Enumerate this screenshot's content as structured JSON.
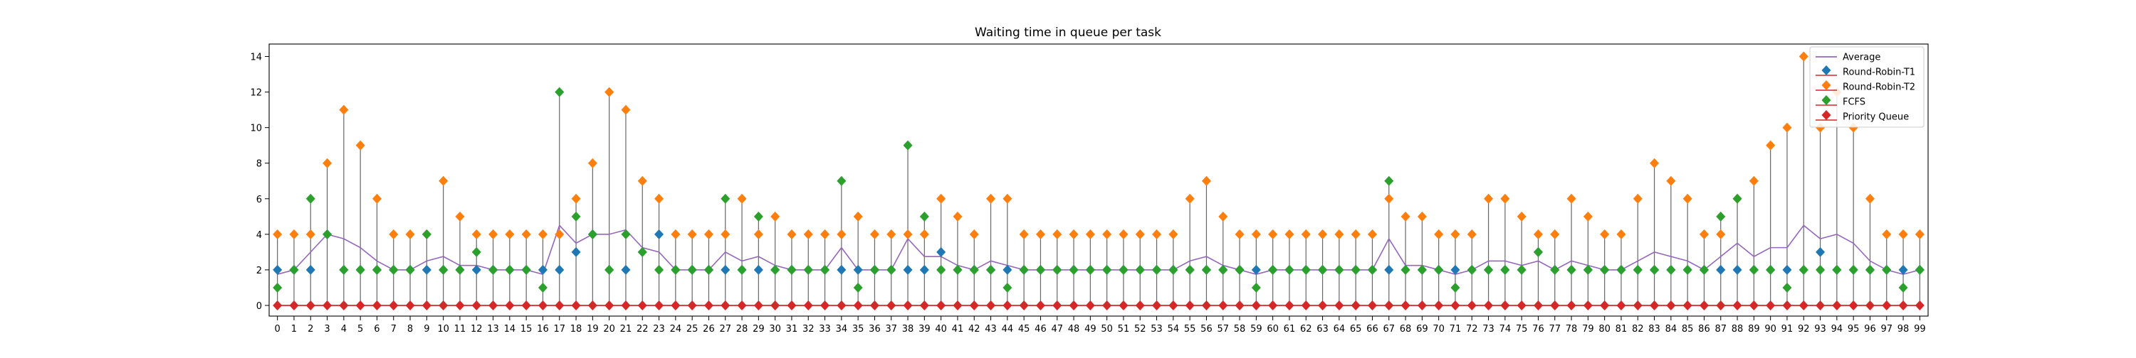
{
  "chart_data": {
    "type": "scatter",
    "title": "Waiting time in queue per task",
    "xlabel": "",
    "ylabel": "",
    "xlim": [
      -0.5,
      99.5
    ],
    "ylim": [
      -0.6,
      14.7
    ],
    "yticks": [
      0,
      2,
      4,
      6,
      8,
      10,
      12,
      14
    ],
    "categories": [
      "0",
      "1",
      "2",
      "3",
      "4",
      "5",
      "6",
      "7",
      "8",
      "9",
      "10",
      "11",
      "12",
      "13",
      "14",
      "15",
      "16",
      "17",
      "18",
      "19",
      "20",
      "21",
      "22",
      "23",
      "24",
      "25",
      "26",
      "27",
      "28",
      "29",
      "30",
      "31",
      "32",
      "33",
      "34",
      "35",
      "36",
      "37",
      "38",
      "39",
      "40",
      "41",
      "42",
      "43",
      "44",
      "45",
      "46",
      "47",
      "48",
      "49",
      "50",
      "51",
      "52",
      "53",
      "54",
      "55",
      "56",
      "57",
      "58",
      "59",
      "60",
      "61",
      "62",
      "63",
      "64",
      "65",
      "66",
      "67",
      "68",
      "69",
      "70",
      "71",
      "72",
      "73",
      "74",
      "75",
      "76",
      "77",
      "78",
      "79",
      "80",
      "81",
      "82",
      "83",
      "84",
      "85",
      "86",
      "87",
      "88",
      "89",
      "90",
      "91",
      "92",
      "93",
      "94",
      "95",
      "96",
      "97",
      "98",
      "99"
    ],
    "grid": false,
    "legend_position": "top-right",
    "series": [
      {
        "name": "Round-Robin-T1",
        "color": "#1f77b4",
        "marker": "diamond",
        "values": [
          2,
          2,
          2,
          4,
          2,
          2,
          2,
          2,
          2,
          2,
          2,
          2,
          2,
          2,
          2,
          2,
          2,
          2,
          3,
          4,
          2,
          2,
          3,
          4,
          2,
          2,
          2,
          2,
          2,
          2,
          2,
          2,
          2,
          2,
          2,
          2,
          2,
          2,
          2,
          2,
          3,
          2,
          2,
          2,
          2,
          2,
          2,
          2,
          2,
          2,
          2,
          2,
          2,
          2,
          2,
          2,
          2,
          2,
          2,
          2,
          2,
          2,
          2,
          2,
          2,
          2,
          2,
          2,
          2,
          2,
          2,
          2,
          2,
          2,
          2,
          2,
          3,
          2,
          2,
          2,
          2,
          2,
          2,
          2,
          2,
          2,
          2,
          2,
          2,
          2,
          2,
          2,
          2,
          3,
          2,
          2,
          2,
          2,
          2,
          2
        ]
      },
      {
        "name": "Round-Robin-T2",
        "color": "#ff7f0e",
        "marker": "diamond",
        "values": [
          4,
          4,
          4,
          8,
          11,
          9,
          6,
          4,
          4,
          4,
          7,
          5,
          4,
          4,
          4,
          4,
          4,
          4,
          6,
          8,
          12,
          11,
          7,
          6,
          4,
          4,
          4,
          4,
          6,
          4,
          5,
          4,
          4,
          4,
          4,
          5,
          4,
          4,
          4,
          4,
          6,
          5,
          4,
          6,
          6,
          4,
          4,
          4,
          4,
          4,
          4,
          4,
          4,
          4,
          4,
          6,
          7,
          5,
          4,
          4,
          4,
          4,
          4,
          4,
          4,
          4,
          4,
          6,
          5,
          5,
          4,
          4,
          4,
          6,
          6,
          5,
          4,
          4,
          6,
          5,
          4,
          4,
          6,
          8,
          7,
          6,
          4,
          4,
          6,
          7,
          9,
          10,
          14,
          10,
          12,
          10,
          6,
          4,
          4,
          4
        ]
      },
      {
        "name": "FCFS",
        "color": "#2ca02c",
        "marker": "diamond",
        "values": [
          1,
          2,
          6,
          4,
          2,
          2,
          2,
          2,
          2,
          4,
          2,
          2,
          3,
          2,
          2,
          2,
          1,
          12,
          5,
          4,
          2,
          4,
          3,
          2,
          2,
          2,
          2,
          6,
          2,
          5,
          2,
          2,
          2,
          2,
          7,
          1,
          2,
          2,
          9,
          5,
          2,
          2,
          2,
          2,
          1,
          2,
          2,
          2,
          2,
          2,
          2,
          2,
          2,
          2,
          2,
          2,
          2,
          2,
          2,
          1,
          2,
          2,
          2,
          2,
          2,
          2,
          2,
          7,
          2,
          2,
          2,
          1,
          2,
          2,
          2,
          2,
          3,
          2,
          2,
          2,
          2,
          2,
          2,
          2,
          2,
          2,
          2,
          5,
          6,
          2,
          2,
          1,
          2,
          2,
          2,
          2,
          2,
          2,
          1,
          2
        ]
      },
      {
        "name": "Priority Queue",
        "color": "#d62728",
        "marker": "diamond",
        "values": [
          0,
          0,
          0,
          0,
          0,
          0,
          0,
          0,
          0,
          0,
          0,
          0,
          0,
          0,
          0,
          0,
          0,
          0,
          0,
          0,
          0,
          0,
          0,
          0,
          0,
          0,
          0,
          0,
          0,
          0,
          0,
          0,
          0,
          0,
          0,
          0,
          0,
          0,
          0,
          0,
          0,
          0,
          0,
          0,
          0,
          0,
          0,
          0,
          0,
          0,
          0,
          0,
          0,
          0,
          0,
          0,
          0,
          0,
          0,
          0,
          0,
          0,
          0,
          0,
          0,
          0,
          0,
          0,
          0,
          0,
          0,
          0,
          0,
          0,
          0,
          0,
          0,
          0,
          0,
          0,
          0,
          0,
          0,
          0,
          0,
          0,
          0,
          0,
          0,
          0,
          0,
          0,
          0,
          0,
          0,
          0,
          0,
          0,
          0,
          0
        ]
      }
    ],
    "average": {
      "name": "Average",
      "color": "#9467bd"
    }
  }
}
